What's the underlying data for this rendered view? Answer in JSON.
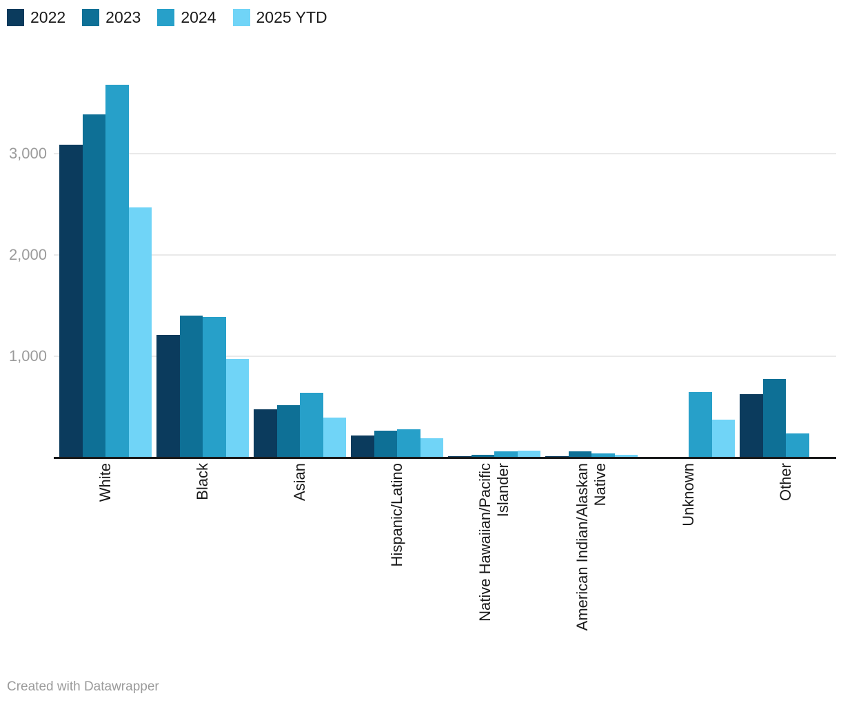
{
  "chart_data": {
    "type": "bar",
    "title": "",
    "xlabel": "",
    "ylabel": "",
    "grid": true,
    "legend_position": "top-left",
    "ylim": [
      0,
      3800
    ],
    "yticks": [
      {
        "value": 1000,
        "label": "1,000"
      },
      {
        "value": 2000,
        "label": "2,000"
      },
      {
        "value": 3000,
        "label": "3,000"
      }
    ],
    "categories": [
      "White",
      "Black",
      "Asian",
      "Hispanic/Latino",
      "Native Hawaiian/Pacific Islander",
      "American Indian/Alaskan Native",
      "Unknown",
      "Other"
    ],
    "series": [
      {
        "name": "2022",
        "color": "#0b3b5d",
        "values": [
          3090,
          1210,
          475,
          215,
          15,
          15,
          0,
          625
        ]
      },
      {
        "name": "2023",
        "color": "#0e7096",
        "values": [
          3390,
          1400,
          520,
          265,
          25,
          60,
          0,
          775
        ]
      },
      {
        "name": "2024",
        "color": "#27a0c9",
        "values": [
          3680,
          1390,
          640,
          280,
          60,
          40,
          645,
          240
        ]
      },
      {
        "name": "2025 YTD",
        "color": "#70d4f7",
        "values": [
          2470,
          975,
          395,
          190,
          70,
          30,
          375,
          0
        ]
      }
    ]
  },
  "footer": {
    "credit": "Created with Datawrapper"
  },
  "colors": {
    "background": "#ffffff",
    "grid": "#e9e9e9",
    "axis": "#18191a",
    "tick_label": "#9b9b9b",
    "category_label": "#1a1a1a",
    "legend_label": "#1a1a1a",
    "credit": "#9b9b9b"
  }
}
